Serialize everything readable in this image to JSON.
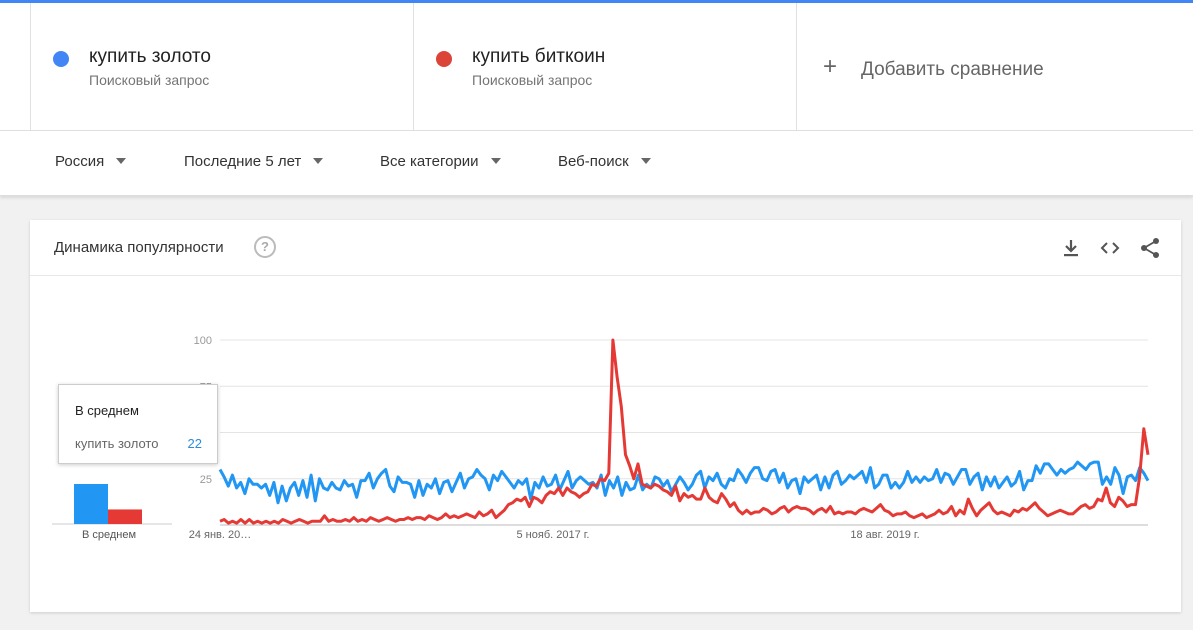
{
  "terms": [
    {
      "name": "купить золото",
      "type": "Поисковый запрос",
      "color": "#4285f4"
    },
    {
      "name": "купить биткоин",
      "type": "Поисковый запрос",
      "color": "#db4437"
    }
  ],
  "add_compare": "Добавить сравнение",
  "filters": {
    "region": "Россия",
    "period": "Последние 5 лет",
    "category": "Все категории",
    "search_type": "Веб-поиск"
  },
  "card": {
    "title": "Динамика популярности"
  },
  "tooltip": {
    "title": "В среднем",
    "term": "купить золото",
    "value": "22"
  },
  "average": {
    "label": "В среднем",
    "gold": 22,
    "bitcoin": 8
  },
  "chart_data": {
    "type": "line",
    "title": "",
    "ylim": [
      0,
      100
    ],
    "yticks": [
      "100",
      "75",
      "50",
      "25"
    ],
    "xlabels": [
      "24 янв. 20…",
      "5 нояб. 2017 г.",
      "18 авг. 2019 г."
    ],
    "series": [
      {
        "name": "купить золото",
        "color": "#2196f3",
        "values": [
          30,
          26,
          21,
          27,
          20,
          23,
          17,
          25,
          22,
          22,
          20,
          22,
          16,
          23,
          12,
          21,
          13,
          20,
          23,
          16,
          24,
          15,
          27,
          13,
          25,
          20,
          19,
          23,
          20,
          19,
          24,
          21,
          22,
          15,
          24,
          24,
          28,
          20,
          25,
          28,
          30,
          21,
          18,
          26,
          23,
          23,
          22,
          15,
          24,
          16,
          22,
          20,
          25,
          17,
          23,
          24,
          18,
          23,
          28,
          20,
          25,
          26,
          30,
          27,
          25,
          19,
          27,
          24,
          29,
          26,
          23,
          20,
          24,
          22,
          25,
          14,
          23,
          20,
          26,
          21,
          22,
          27,
          19,
          24,
          29,
          20,
          24,
          26,
          24,
          22,
          23,
          20,
          27,
          16,
          24,
          20,
          26,
          16,
          23,
          19,
          20,
          27,
          19,
          22,
          20,
          26,
          25,
          21,
          24,
          18,
          22,
          26,
          23,
          19,
          22,
          27,
          29,
          20,
          26,
          24,
          28,
          22,
          20,
          25,
          24,
          30,
          27,
          23,
          28,
          31,
          31,
          25,
          24,
          29,
          30,
          23,
          28,
          20,
          24,
          25,
          17,
          26,
          23,
          25,
          27,
          19,
          26,
          20,
          27,
          29,
          22,
          24,
          27,
          25,
          27,
          29,
          23,
          31,
          20,
          22,
          27,
          27,
          20,
          23,
          20,
          23,
          29,
          23,
          26,
          23,
          26,
          24,
          25,
          30,
          23,
          28,
          27,
          22,
          26,
          30,
          30,
          22,
          26,
          28,
          19,
          26,
          21,
          26,
          20,
          23,
          26,
          21,
          23,
          29,
          19,
          24,
          24,
          32,
          28,
          33,
          33,
          30,
          27,
          30,
          28,
          30,
          31,
          34,
          32,
          30,
          33,
          34,
          34,
          22,
          26,
          22,
          31,
          27,
          17,
          26,
          27,
          24,
          31,
          28,
          24
        ]
      },
      {
        "name": "купить биткоин",
        "color": "#e53935",
        "values": [
          2,
          3,
          1,
          2,
          1,
          3,
          1,
          3,
          1,
          2,
          1,
          2,
          1,
          2,
          1,
          3,
          2,
          1,
          2,
          3,
          2,
          1,
          2,
          2,
          2,
          5,
          2,
          3,
          2,
          2,
          3,
          2,
          4,
          2,
          3,
          2,
          4,
          3,
          2,
          3,
          4,
          3,
          2,
          3,
          3,
          4,
          3,
          4,
          4,
          3,
          5,
          4,
          3,
          4,
          6,
          4,
          5,
          4,
          5,
          6,
          5,
          4,
          7,
          5,
          6,
          8,
          4,
          6,
          8,
          11,
          12,
          14,
          13,
          15,
          10,
          15,
          14,
          12,
          16,
          18,
          17,
          20,
          16,
          20,
          18,
          17,
          15,
          17,
          18,
          22,
          21,
          25,
          24,
          28,
          100,
          80,
          64,
          38,
          32,
          25,
          33,
          22,
          21,
          20,
          22,
          21,
          19,
          18,
          16,
          21,
          13,
          17,
          15,
          16,
          14,
          14,
          20,
          15,
          13,
          12,
          17,
          14,
          10,
          12,
          8,
          6,
          8,
          6,
          7,
          7,
          9,
          8,
          6,
          7,
          9,
          10,
          7,
          9,
          10,
          9,
          9,
          8,
          6,
          8,
          9,
          7,
          10,
          6,
          7,
          6,
          7,
          7,
          6,
          8,
          9,
          8,
          7,
          9,
          11,
          8,
          7,
          5,
          6,
          6,
          7,
          5,
          4,
          5,
          6,
          4,
          5,
          6,
          8,
          6,
          7,
          10,
          5,
          8,
          6,
          14,
          9,
          5,
          8,
          10,
          12,
          8,
          6,
          7,
          6,
          5,
          8,
          7,
          9,
          8,
          10,
          12,
          9,
          7,
          5,
          6,
          7,
          8,
          7,
          6,
          6,
          8,
          10,
          11,
          9,
          10,
          14,
          13,
          20,
          12,
          10,
          15,
          13,
          10,
          11,
          11,
          26,
          52,
          38
        ]
      }
    ]
  }
}
